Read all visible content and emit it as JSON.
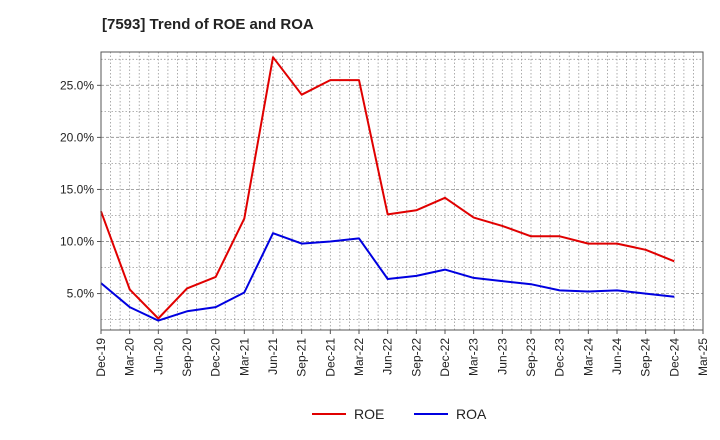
{
  "chart_data": {
    "type": "line",
    "title": "[7593]  Trend of ROE and ROA",
    "xlabel": "",
    "ylabel": "",
    "categories": [
      "Dec-19",
      "Mar-20",
      "Jun-20",
      "Sep-20",
      "Dec-20",
      "Mar-21",
      "Jun-21",
      "Sep-21",
      "Dec-21",
      "Mar-22",
      "Jun-22",
      "Sep-22",
      "Dec-22",
      "Mar-23",
      "Jun-23",
      "Sep-23",
      "Dec-23",
      "Mar-24",
      "Jun-24",
      "Sep-24",
      "Dec-24",
      "Mar-25"
    ],
    "y_ticks": [
      5.0,
      10.0,
      15.0,
      20.0,
      25.0
    ],
    "y_tick_labels": [
      "5.0%",
      "10.0%",
      "15.0%",
      "20.0%",
      "25.0%"
    ],
    "ylim": [
      1.5,
      28.2
    ],
    "grid": true,
    "legend_position": "bottom-center",
    "series": [
      {
        "name": "ROE",
        "color": "#e00000",
        "values": [
          12.9,
          5.4,
          2.6,
          5.5,
          6.6,
          12.2,
          27.7,
          24.1,
          25.5,
          25.5,
          12.6,
          13.0,
          14.2,
          12.3,
          11.5,
          10.5,
          10.5,
          9.8,
          9.8,
          9.2,
          8.1,
          null
        ]
      },
      {
        "name": "ROA",
        "color": "#0000e0",
        "values": [
          6.0,
          3.7,
          2.4,
          3.3,
          3.7,
          5.1,
          10.8,
          9.8,
          10.0,
          10.3,
          6.4,
          6.7,
          7.3,
          6.5,
          6.2,
          5.9,
          5.3,
          5.2,
          5.3,
          5.0,
          4.7,
          null
        ]
      }
    ]
  }
}
